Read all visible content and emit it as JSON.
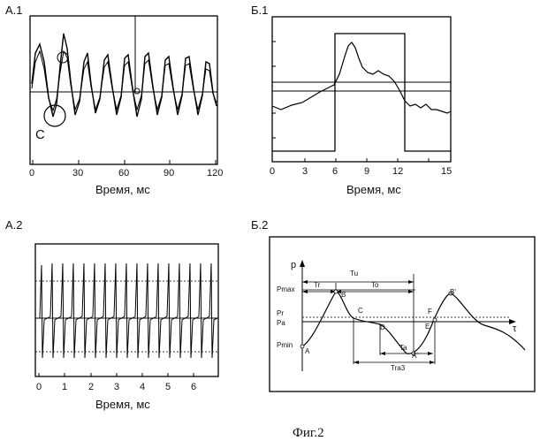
{
  "figure_caption": "Фиг.2",
  "panels": {
    "a1": {
      "label": "А.1",
      "x_ticks": [
        "0",
        "30",
        "60",
        "90",
        "120"
      ],
      "x_title": "Время, мс",
      "annotation": "C"
    },
    "b1": {
      "label": "Б.1",
      "x_ticks": [
        "0",
        "3",
        "6",
        "9",
        "12",
        "15"
      ],
      "x_title": "Время, мс"
    },
    "a2": {
      "label": "А.2",
      "x_ticks": [
        "0",
        "1",
        "2",
        "3",
        "4",
        "5",
        "6"
      ],
      "x_title": "Время, мс"
    },
    "b2": {
      "label": "Б.2",
      "y_axis": "p",
      "x_axis": "τ",
      "levels": {
        "pmax": "Pmax",
        "pr": "Pr",
        "pa": "Pa",
        "pmin": "Pmin"
      },
      "intervals": {
        "tu": "Tu",
        "tr": "Tr",
        "to": "To",
        "ta": "Ta",
        "tra": "Tra3"
      },
      "points": {
        "a": "A",
        "b": "B",
        "c": "C",
        "d": "D",
        "e": "E",
        "f": "F",
        "a2": "A'",
        "b2": "B'"
      }
    }
  }
}
